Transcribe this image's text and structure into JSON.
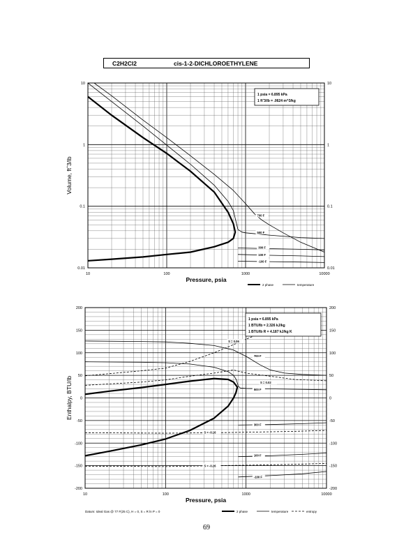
{
  "header": {
    "formula": "C2H2Cl2",
    "name": "cis-1-2-DICHLOROETHYLENE"
  },
  "page_number": "69",
  "chart_data": [
    {
      "type": "line",
      "ylabel": "Volume, ft^3/lb",
      "xlabel": "Pressure, psia",
      "x_scale": "log",
      "y_scale": "log",
      "xlim": [
        10,
        10000
      ],
      "ylim": [
        0.01,
        10
      ],
      "x_ticks": [
        "10",
        "100",
        "1000",
        "10000"
      ],
      "y_ticks_left": [
        "10",
        "1",
        "0.1",
        "0.01"
      ],
      "y_ticks_right": [
        "10",
        "1",
        "0.1",
        "0.01"
      ],
      "info_box": [
        "1 psia = 6.895 kPa",
        "1 ft^3/lb = .0624 m^3/kg"
      ],
      "legend": [
        "2 phase",
        "temperature"
      ],
      "series": [
        {
          "name": "2 phase",
          "style": "thick",
          "points": [
            [
              10,
              6.0
            ],
            [
              20,
              3.0
            ],
            [
              50,
              1.3
            ],
            [
              100,
              0.72
            ],
            [
              200,
              0.37
            ],
            [
              400,
              0.17
            ],
            [
              600,
              0.08
            ],
            [
              700,
              0.052
            ],
            [
              740,
              0.038
            ],
            [
              700,
              0.03
            ],
            [
              600,
              0.026
            ],
            [
              400,
              0.022
            ],
            [
              200,
              0.018
            ],
            [
              100,
              0.0165
            ],
            [
              50,
              0.015
            ],
            [
              20,
              0.0138
            ],
            [
              10,
              0.013
            ]
          ]
        },
        {
          "name": "700 F",
          "style": "thin",
          "points": [
            [
              12,
              10
            ],
            [
              20,
              6.2
            ],
            [
              50,
              2.5
            ],
            [
              100,
              1.3
            ],
            [
              200,
              0.66
            ],
            [
              400,
              0.33
            ],
            [
              700,
              0.18
            ],
            [
              1000,
              0.11
            ],
            [
              1300,
              0.075
            ],
            [
              1600,
              0.06
            ],
            [
              2000,
              0.05
            ],
            [
              3000,
              0.037
            ],
            [
              5000,
              0.026
            ],
            [
              10000,
              0.018
            ]
          ]
        },
        {
          "name": "500 F",
          "style": "thin",
          "points": [
            [
              10,
              10
            ],
            [
              20,
              5.0
            ],
            [
              50,
              2.0
            ],
            [
              100,
              0.98
            ],
            [
              200,
              0.48
            ],
            [
              400,
              0.22
            ],
            [
              600,
              0.12
            ],
            [
              700,
              0.085
            ],
            [
              760,
              0.055
            ],
            [
              800,
              0.042
            ],
            [
              900,
              0.038
            ],
            [
              1000,
              0.037
            ],
            [
              2000,
              0.034
            ],
            [
              5000,
              0.031
            ],
            [
              10000,
              0.03
            ]
          ]
        },
        {
          "name": "300 F",
          "style": "thin",
          "points": [
            [
              800,
              0.021
            ],
            [
              2000,
              0.0205
            ],
            [
              5000,
              0.02
            ],
            [
              10000,
              0.0195
            ]
          ]
        },
        {
          "name": "100 F",
          "style": "thin",
          "points": [
            [
              800,
              0.0165
            ],
            [
              2000,
              0.016
            ],
            [
              5000,
              0.0156
            ],
            [
              10000,
              0.0152
            ]
          ]
        },
        {
          "name": "-100 F",
          "style": "thin",
          "points": [
            [
              800,
              0.0128
            ],
            [
              2000,
              0.0126
            ],
            [
              5000,
              0.0124
            ],
            [
              10000,
              0.0122
            ]
          ]
        }
      ],
      "curve_labels": [
        "700 F",
        "500 F",
        "300 F",
        "100 F",
        "-100 F"
      ]
    },
    {
      "type": "line",
      "ylabel": "Enthalpy, BTU/lb",
      "xlabel": "Pressure, psia",
      "x_scale": "log",
      "y_scale": "linear",
      "xlim": [
        10,
        10000
      ],
      "ylim": [
        -200,
        200
      ],
      "x_ticks": [
        "10",
        "100",
        "1000",
        "10000"
      ],
      "y_ticks_left": [
        "200",
        "150",
        "100",
        "50",
        "0",
        "-50",
        "-100",
        "-150",
        "-200"
      ],
      "y_ticks_right": [
        "200",
        "150",
        "100",
        "50",
        "0",
        "-50",
        "-100",
        "-150",
        "-200"
      ],
      "info_box": [
        "1 psia = 6.895 kPa",
        "1 BTU/lb = 2.326 kJ/kg",
        "1 BTU/lb R = 4.187 kJ/kg K"
      ],
      "legend": [
        "2 phase",
        "temperature",
        "entropy"
      ],
      "footnote": "Datum: Ideal Gas @ 77 F(25 C), H = 0, S = R ln P = 0",
      "series": [
        {
          "name": "2 phase",
          "style": "thick",
          "points": [
            [
              10,
              -128
            ],
            [
              20,
              -118
            ],
            [
              50,
              -104
            ],
            [
              100,
              -91
            ],
            [
              200,
              -72
            ],
            [
              400,
              -45
            ],
            [
              600,
              -18
            ],
            [
              700,
              0
            ],
            [
              750,
              12
            ],
            [
              780,
              24
            ],
            [
              700,
              35
            ],
            [
              600,
              41
            ],
            [
              400,
              43
            ],
            [
              200,
              37
            ],
            [
              100,
              30
            ],
            [
              50,
              23
            ],
            [
              20,
              15
            ],
            [
              10,
              8
            ]
          ]
        },
        {
          "name": "700 F",
          "style": "thin",
          "points": [
            [
              10,
              126
            ],
            [
              50,
              125
            ],
            [
              100,
              124
            ],
            [
              200,
              121
            ],
            [
              400,
              116
            ],
            [
              700,
              106
            ],
            [
              1000,
              92
            ],
            [
              1500,
              73
            ],
            [
              2000,
              62
            ],
            [
              3000,
              55
            ],
            [
              5000,
              52
            ],
            [
              10000,
              50
            ]
          ]
        },
        {
          "name": "500 F",
          "style": "thin",
          "points": [
            [
              10,
              80
            ],
            [
              50,
              79
            ],
            [
              100,
              78
            ],
            [
              200,
              75
            ],
            [
              400,
              68
            ],
            [
              600,
              58
            ],
            [
              700,
              50
            ],
            [
              760,
              40
            ],
            [
              800,
              26
            ],
            [
              850,
              22
            ],
            [
              1000,
              21
            ],
            [
              2000,
              20
            ],
            [
              5000,
              19
            ],
            [
              10000,
              18
            ]
          ]
        },
        {
          "name": "300 F",
          "style": "thin",
          "points": [
            [
              800,
              -60
            ],
            [
              2000,
              -59
            ],
            [
              5000,
              -57
            ],
            [
              10000,
              -55
            ]
          ]
        },
        {
          "name": "100 F",
          "style": "thin",
          "points": [
            [
              800,
              -130
            ],
            [
              2000,
              -128
            ],
            [
              5000,
              -125
            ],
            [
              10000,
              -122
            ]
          ]
        },
        {
          "name": "-100 F",
          "style": "thin",
          "points": [
            [
              800,
              -175
            ],
            [
              2000,
              -172
            ],
            [
              5000,
              -168
            ],
            [
              10000,
              -163
            ]
          ]
        },
        {
          "name": "S = 0.06",
          "style": "dashed",
          "points": [
            [
              10,
              49
            ],
            [
              50,
              60
            ],
            [
              100,
              66
            ],
            [
              200,
              81
            ],
            [
              400,
              100
            ],
            [
              700,
              118
            ],
            [
              1000,
              130
            ],
            [
              2000,
              152
            ],
            [
              4000,
              170
            ],
            [
              5000,
              180
            ]
          ]
        },
        {
          "name": "S = 0.02",
          "style": "dashed",
          "points": [
            [
              10,
              28
            ],
            [
              50,
              35
            ],
            [
              100,
              40
            ],
            [
              200,
              48
            ],
            [
              400,
              55
            ],
            [
              700,
              62
            ],
            [
              1000,
              55
            ],
            [
              2000,
              48
            ],
            [
              4000,
              41
            ],
            [
              10000,
              38
            ]
          ]
        },
        {
          "name": "S = -0.16",
          "style": "dashed",
          "points": [
            [
              10,
              -77
            ],
            [
              100,
              -78
            ],
            [
              400,
              -77
            ],
            [
              1000,
              -76
            ],
            [
              4000,
              -74
            ],
            [
              10000,
              -72
            ]
          ]
        },
        {
          "name": "S = -0.26",
          "style": "dashed",
          "points": [
            [
              10,
              -151
            ],
            [
              100,
              -152
            ],
            [
              400,
              -150
            ],
            [
              1000,
              -149
            ],
            [
              4000,
              -147
            ],
            [
              10000,
              -145
            ]
          ]
        }
      ],
      "curve_labels": [
        "700 F",
        "500 F",
        "300 F",
        "100 F",
        "-100 F"
      ],
      "entropy_labels": [
        "S = 0.06",
        "S = 0.02",
        "S = -0.16",
        "S = -0.26"
      ]
    }
  ]
}
